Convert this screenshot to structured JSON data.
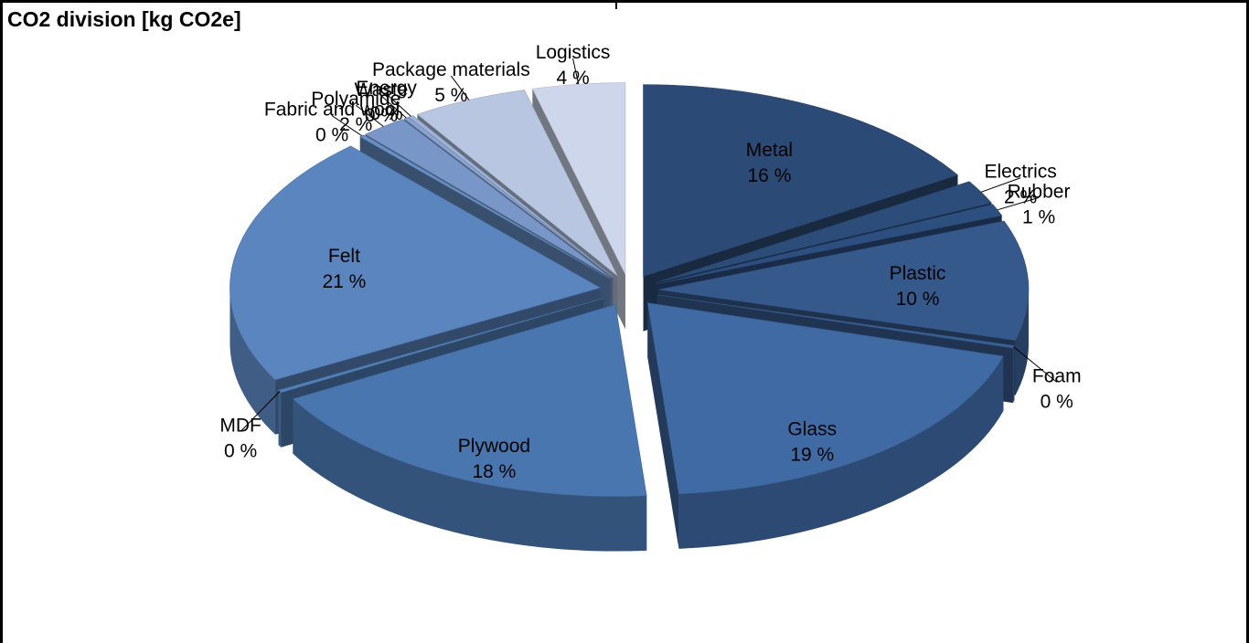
{
  "chart_data": {
    "type": "pie",
    "title": "CO2 division [kg CO2e]",
    "slices": [
      {
        "label": "Metal",
        "value": 16,
        "pct_label": "16 %",
        "color": "#2b4a75"
      },
      {
        "label": "Electrics",
        "value": 2,
        "pct_label": "2 %",
        "color": "#2c4c7a"
      },
      {
        "label": "Rubber",
        "value": 1,
        "pct_label": "1 %",
        "color": "#2d4f80"
      },
      {
        "label": "Plastic",
        "value": 10,
        "pct_label": "10 %",
        "color": "#36598c"
      },
      {
        "label": "Foam",
        "value": 0,
        "pct_label": "0 %",
        "color": "#3a5f94"
      },
      {
        "label": "Glass",
        "value": 19,
        "pct_label": "19 %",
        "color": "#3f6aa4"
      },
      {
        "label": "Plywood",
        "value": 18,
        "pct_label": "18 %",
        "color": "#4a76b0"
      },
      {
        "label": "MDF",
        "value": 0,
        "pct_label": "0 %",
        "color": "#5180b8"
      },
      {
        "label": "Felt",
        "value": 21,
        "pct_label": "21 %",
        "color": "#5a85be"
      },
      {
        "label": "Fabric and wool",
        "value": 0,
        "pct_label": "0 %",
        "color": "#6690c6"
      },
      {
        "label": "Polyamide",
        "value": 2,
        "pct_label": "2 %",
        "color": "#7896c8"
      },
      {
        "label": "Waste",
        "value": 0,
        "pct_label": "0 %",
        "color": "#8aa4d0"
      },
      {
        "label": "Energy",
        "value": 0,
        "pct_label": "0 %",
        "color": "#9db3d8"
      },
      {
        "label": "Package materials",
        "value": 5,
        "pct_label": "5 %",
        "color": "#b8c6e2"
      },
      {
        "label": "Logistics",
        "value": 4,
        "pct_label": "4 %",
        "color": "#cdd6ea"
      }
    ]
  }
}
